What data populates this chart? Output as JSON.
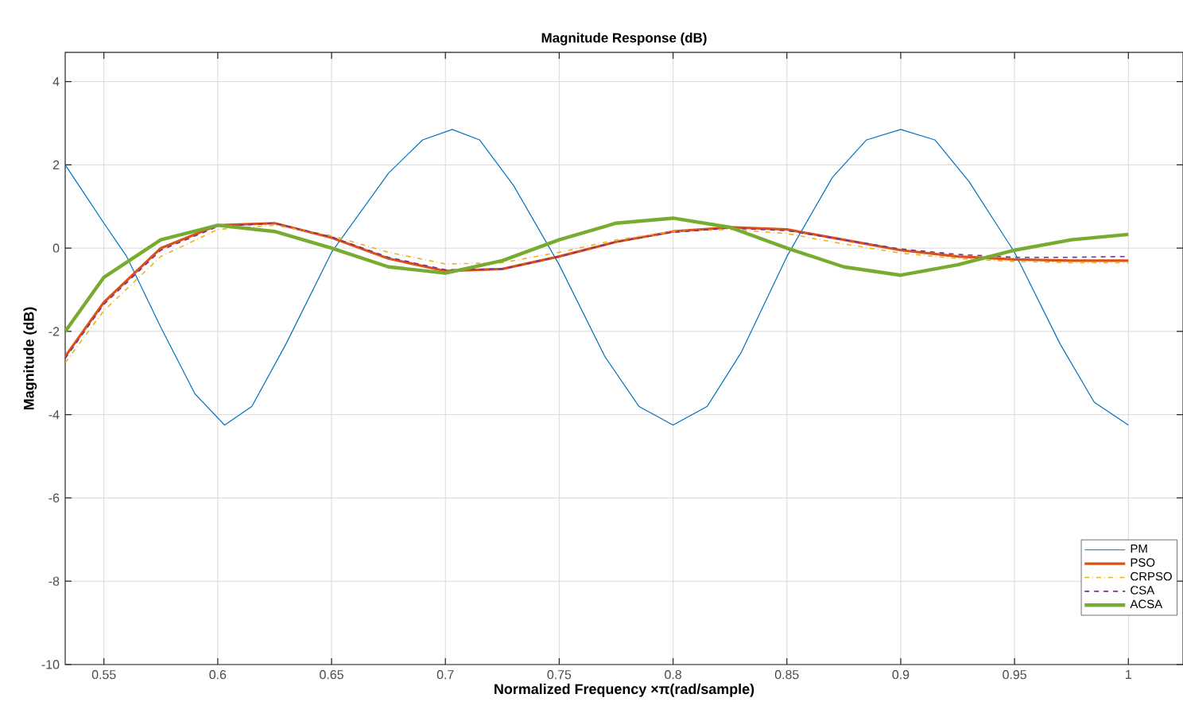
{
  "chart_data": {
    "type": "line",
    "title": "Magnitude Response (dB)",
    "xlabel": "Normalized Frequency  ×π(rad/sample)",
    "ylabel": "Magnitude (dB)",
    "xlim": [
      0.533,
      1.024
    ],
    "ylim": [
      -10,
      4.7
    ],
    "xticks": [
      0.55,
      0.6,
      0.65,
      0.7,
      0.75,
      0.8,
      0.85,
      0.9,
      0.95,
      1
    ],
    "yticks": [
      -10,
      -8,
      -6,
      -4,
      -2,
      0,
      2,
      4
    ],
    "grid": true,
    "legend": "bottom right",
    "marker": "none",
    "series": [
      {
        "name": "PM",
        "color": "#0072bd",
        "line_style": "solid",
        "x": [
          0.533,
          0.55,
          0.56,
          0.575,
          0.59,
          0.603,
          0.615,
          0.63,
          0.65,
          0.675,
          0.69,
          0.703,
          0.715,
          0.73,
          0.75,
          0.77,
          0.785,
          0.8,
          0.815,
          0.83,
          0.85,
          0.87,
          0.885,
          0.9,
          0.915,
          0.93,
          0.95,
          0.97,
          0.985,
          1.0
        ],
        "values": [
          2.0,
          0.6,
          -0.2,
          -1.9,
          -3.5,
          -4.25,
          -3.8,
          -2.3,
          -0.1,
          1.8,
          2.6,
          2.85,
          2.6,
          1.5,
          -0.4,
          -2.6,
          -3.8,
          -4.25,
          -3.8,
          -2.5,
          -0.2,
          1.7,
          2.6,
          2.85,
          2.6,
          1.6,
          -0.1,
          -2.3,
          -3.7,
          -4.25
        ]
      },
      {
        "name": "PSO",
        "color": "#d95319",
        "line_style": "solid",
        "x": [
          0.533,
          0.55,
          0.575,
          0.6,
          0.625,
          0.65,
          0.675,
          0.7,
          0.725,
          0.75,
          0.775,
          0.8,
          0.825,
          0.85,
          0.875,
          0.9,
          0.925,
          0.95,
          0.975,
          1.0
        ],
        "values": [
          -2.6,
          -1.3,
          0.0,
          0.55,
          0.6,
          0.25,
          -0.25,
          -0.55,
          -0.5,
          -0.2,
          0.15,
          0.4,
          0.5,
          0.45,
          0.2,
          -0.05,
          -0.2,
          -0.27,
          -0.3,
          -0.3
        ]
      },
      {
        "name": "CRPSO",
        "color": "#edb120",
        "line_style": "dashdotted",
        "x": [
          0.533,
          0.55,
          0.575,
          0.6,
          0.625,
          0.65,
          0.675,
          0.7,
          0.725,
          0.75,
          0.775,
          0.8,
          0.825,
          0.85,
          0.875,
          0.9,
          0.925,
          0.95,
          0.975,
          1.0
        ],
        "values": [
          -2.75,
          -1.5,
          -0.2,
          0.45,
          0.55,
          0.3,
          -0.1,
          -0.38,
          -0.35,
          -0.1,
          0.2,
          0.4,
          0.45,
          0.35,
          0.1,
          -0.12,
          -0.25,
          -0.32,
          -0.35,
          -0.35
        ]
      },
      {
        "name": "CSA",
        "color": "#7e2f8e",
        "line_style": "dashed",
        "x": [
          0.533,
          0.55,
          0.575,
          0.6,
          0.625,
          0.65,
          0.675,
          0.7,
          0.725,
          0.75,
          0.775,
          0.8,
          0.825,
          0.85,
          0.875,
          0.9,
          0.925,
          0.95,
          0.975,
          1.0
        ],
        "values": [
          -2.65,
          -1.35,
          -0.05,
          0.52,
          0.6,
          0.27,
          -0.22,
          -0.52,
          -0.5,
          -0.2,
          0.15,
          0.38,
          0.48,
          0.42,
          0.2,
          -0.02,
          -0.15,
          -0.22,
          -0.22,
          -0.2
        ]
      },
      {
        "name": "ACSA",
        "color": "#77ac30",
        "line_style": "solid",
        "x": [
          0.533,
          0.55,
          0.575,
          0.6,
          0.625,
          0.65,
          0.675,
          0.7,
          0.725,
          0.75,
          0.775,
          0.8,
          0.825,
          0.85,
          0.875,
          0.9,
          0.925,
          0.95,
          0.975,
          1.0
        ],
        "values": [
          -2.0,
          -0.7,
          0.2,
          0.55,
          0.4,
          0.0,
          -0.45,
          -0.6,
          -0.3,
          0.2,
          0.6,
          0.72,
          0.5,
          0.0,
          -0.45,
          -0.65,
          -0.4,
          -0.05,
          0.2,
          0.33
        ]
      }
    ]
  }
}
